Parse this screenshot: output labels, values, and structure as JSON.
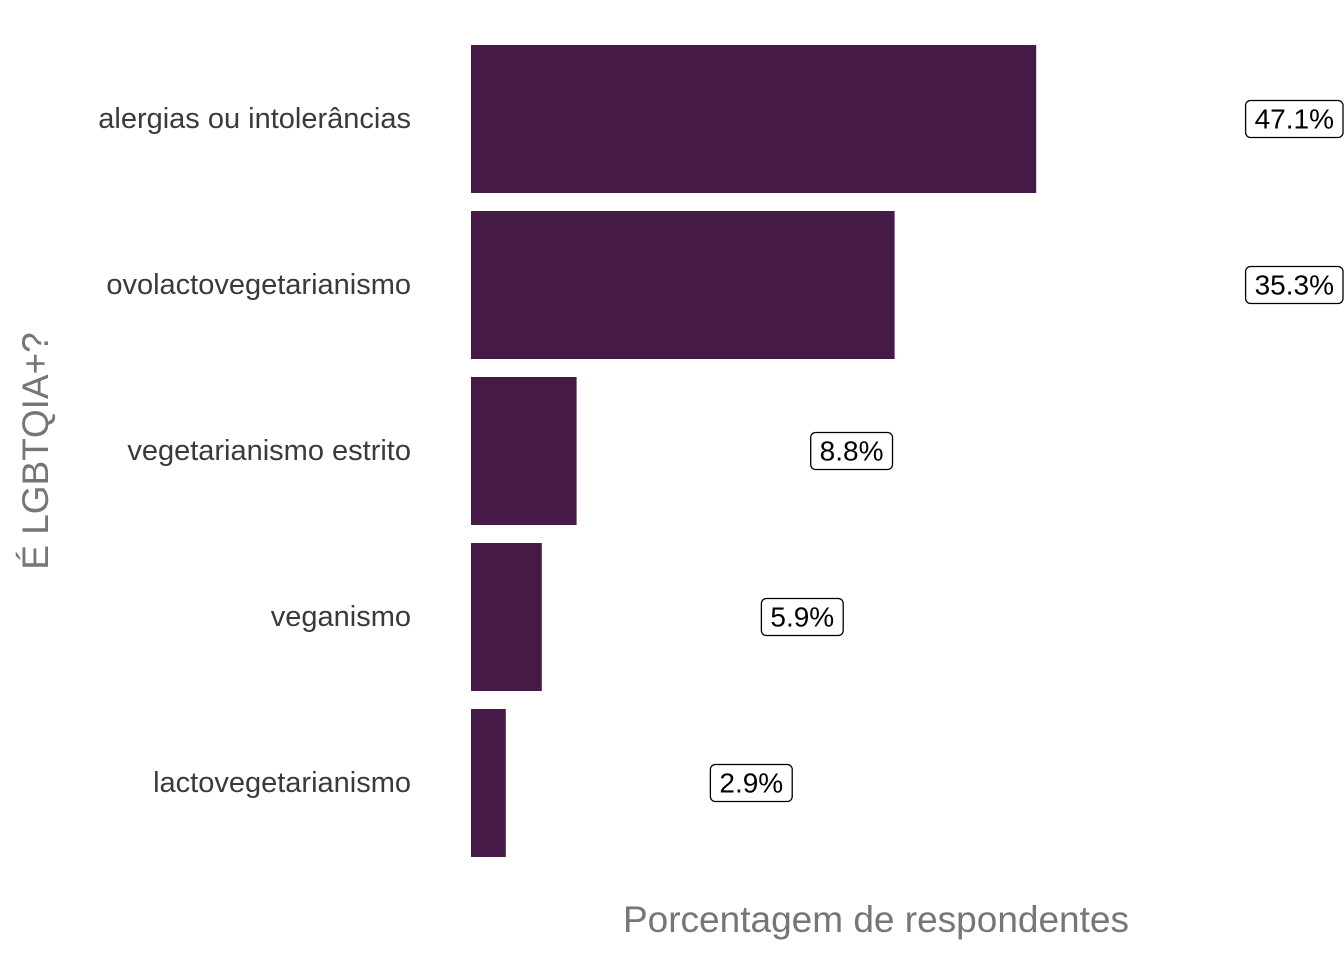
{
  "chart_data": {
    "type": "bar",
    "orientation": "horizontal",
    "categories": [
      "alergias ou intolerâncias",
      "ovolactovegetarianismo",
      "vegetarianismo estrito",
      "veganismo",
      "lactovegetarianismo"
    ],
    "values": [
      47.1,
      35.3,
      8.8,
      5.9,
      2.9
    ],
    "data_labels": [
      "47.1%",
      "35.3%",
      "8.8%",
      "5.9%",
      "2.9%"
    ],
    "title": "",
    "xlabel": "Porcentagem de respondentes",
    "ylabel": "É LGBTQIA+?",
    "xlim": [
      0,
      47.1
    ],
    "grid": false,
    "legend": "none",
    "bar_color": "#451a46"
  }
}
